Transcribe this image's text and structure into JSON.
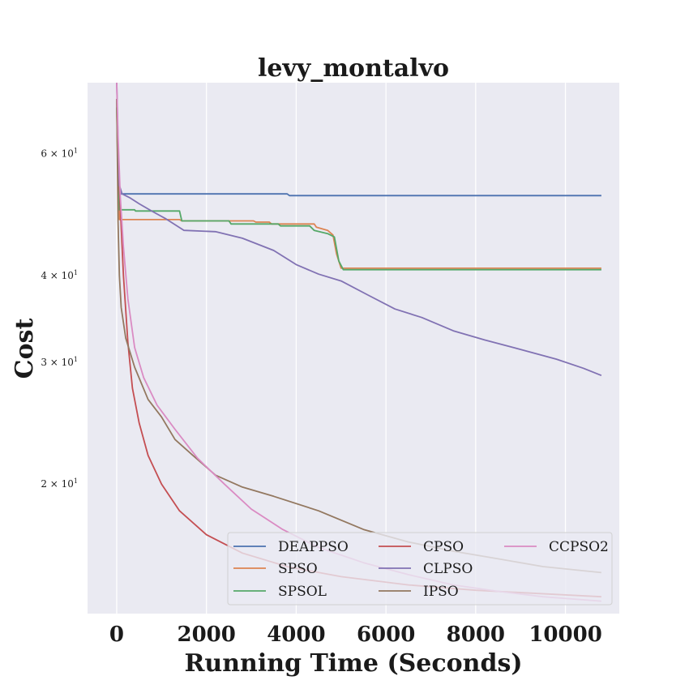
{
  "chart_data": {
    "type": "line",
    "title": "levy_montalvo",
    "xlabel": "Running Time (Seconds)",
    "ylabel": "Cost",
    "yscale": "log",
    "xlim": [
      -650,
      11200
    ],
    "ylim": [
      13.0,
      76.0
    ],
    "grid": true,
    "background": "#eaeaf2",
    "grid_color": "#ffffff",
    "legend": {
      "placement": "lower-right",
      "columns": 3
    },
    "x_ticks": [
      {
        "value": 0,
        "label": "0"
      },
      {
        "value": 2000,
        "label": "2000"
      },
      {
        "value": 4000,
        "label": "4000"
      },
      {
        "value": 6000,
        "label": "6000"
      },
      {
        "value": 8000,
        "label": "8000"
      },
      {
        "value": 10000,
        "label": "10000"
      }
    ],
    "y_ticks": [
      {
        "value": 20,
        "mantissa": "2",
        "exponent": "1"
      },
      {
        "value": 30,
        "mantissa": "3",
        "exponent": "1"
      },
      {
        "value": 40,
        "mantissa": "4",
        "exponent": "1"
      },
      {
        "value": 60,
        "mantissa": "6",
        "exponent": "1"
      }
    ],
    "series": [
      {
        "name": "DEAPPSO",
        "color": "#4c72b0",
        "points": [
          [
            0,
            72
          ],
          [
            30,
            62
          ],
          [
            60,
            52.5
          ],
          [
            3800,
            52.5
          ],
          [
            3850,
            52.2
          ],
          [
            10800,
            52.2
          ]
        ]
      },
      {
        "name": "SPSO",
        "color": "#dd8452",
        "points": [
          [
            0,
            70
          ],
          [
            30,
            55
          ],
          [
            60,
            48.2
          ],
          [
            1400,
            48.2
          ],
          [
            1450,
            48
          ],
          [
            3050,
            48
          ],
          [
            3100,
            47.8
          ],
          [
            3400,
            47.8
          ],
          [
            3450,
            47.5
          ],
          [
            4400,
            47.5
          ],
          [
            4450,
            47
          ],
          [
            4700,
            46.5
          ],
          [
            4820,
            45.8
          ],
          [
            4900,
            43
          ],
          [
            5000,
            41
          ],
          [
            10800,
            41
          ]
        ]
      },
      {
        "name": "SPSOL",
        "color": "#55a868",
        "points": [
          [
            0,
            70
          ],
          [
            30,
            58
          ],
          [
            60,
            49.8
          ],
          [
            400,
            49.8
          ],
          [
            420,
            49.6
          ],
          [
            1400,
            49.6
          ],
          [
            1450,
            48
          ],
          [
            2500,
            48
          ],
          [
            2550,
            47.5
          ],
          [
            3600,
            47.5
          ],
          [
            3650,
            47.2
          ],
          [
            4300,
            47.2
          ],
          [
            4400,
            46.5
          ],
          [
            4700,
            46
          ],
          [
            4850,
            45.5
          ],
          [
            4950,
            42
          ],
          [
            5050,
            40.8
          ],
          [
            10800,
            40.8
          ]
        ]
      },
      {
        "name": "CPSO",
        "color": "#c44e52",
        "points": [
          [
            0,
            72
          ],
          [
            50,
            55
          ],
          [
            150,
            40
          ],
          [
            250,
            32
          ],
          [
            350,
            27.5
          ],
          [
            500,
            24.5
          ],
          [
            700,
            22
          ],
          [
            1000,
            20
          ],
          [
            1400,
            18.3
          ],
          [
            2000,
            16.9
          ],
          [
            2800,
            15.9
          ],
          [
            3800,
            15.2
          ],
          [
            5000,
            14.7
          ],
          [
            6500,
            14.3
          ],
          [
            8000,
            14.05
          ],
          [
            10800,
            13.75
          ]
        ]
      },
      {
        "name": "CLPSO",
        "color": "#8172b3",
        "points": [
          [
            0,
            76
          ],
          [
            30,
            62
          ],
          [
            60,
            54
          ],
          [
            120,
            52.5
          ],
          [
            300,
            51.8
          ],
          [
            500,
            50.8
          ],
          [
            800,
            49.5
          ],
          [
            1100,
            48.3
          ],
          [
            1500,
            46.5
          ],
          [
            2200,
            46.3
          ],
          [
            2800,
            45.3
          ],
          [
            3500,
            43.5
          ],
          [
            4000,
            41.5
          ],
          [
            4500,
            40.2
          ],
          [
            5000,
            39.3
          ],
          [
            5600,
            37.5
          ],
          [
            6200,
            35.8
          ],
          [
            6800,
            34.8
          ],
          [
            7500,
            33.3
          ],
          [
            8200,
            32.3
          ],
          [
            9000,
            31.3
          ],
          [
            9800,
            30.3
          ],
          [
            10400,
            29.4
          ],
          [
            10800,
            28.7
          ]
        ]
      },
      {
        "name": "IPSO",
        "color": "#937860",
        "points": [
          [
            0,
            72
          ],
          [
            30,
            48
          ],
          [
            60,
            40
          ],
          [
            100,
            36
          ],
          [
            200,
            32.5
          ],
          [
            400,
            29.5
          ],
          [
            700,
            26.5
          ],
          [
            1000,
            25
          ],
          [
            1300,
            23.2
          ],
          [
            1700,
            22
          ],
          [
            2200,
            20.6
          ],
          [
            2800,
            19.8
          ],
          [
            3500,
            19.2
          ],
          [
            4500,
            18.3
          ],
          [
            5500,
            17.2
          ],
          [
            6500,
            16.5
          ],
          [
            7500,
            16
          ],
          [
            8500,
            15.6
          ],
          [
            9500,
            15.2
          ],
          [
            10800,
            14.9
          ]
        ]
      },
      {
        "name": "CCPSO2",
        "color": "#da8bc3",
        "points": [
          [
            0,
            76
          ],
          [
            30,
            64
          ],
          [
            80,
            52
          ],
          [
            150,
            44
          ],
          [
            250,
            37
          ],
          [
            400,
            31.5
          ],
          [
            600,
            28.5
          ],
          [
            900,
            26
          ],
          [
            1300,
            24
          ],
          [
            1800,
            21.8
          ],
          [
            2400,
            20
          ],
          [
            3000,
            18.4
          ],
          [
            3700,
            17.2
          ],
          [
            4500,
            16.2
          ],
          [
            5500,
            15.4
          ],
          [
            6500,
            14.8
          ],
          [
            7500,
            14.3
          ],
          [
            8500,
            14.0
          ],
          [
            9500,
            13.75
          ],
          [
            10800,
            13.55
          ]
        ]
      }
    ]
  }
}
